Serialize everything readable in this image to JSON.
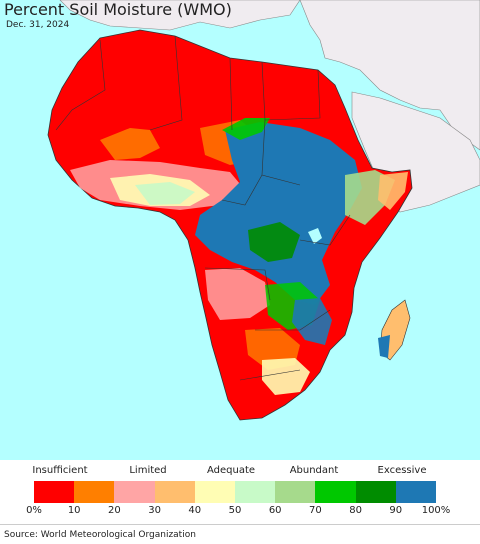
{
  "header": {
    "title": "Percent Soil Moisture (WMO)",
    "date": "Dec. 31, 2024"
  },
  "legend": {
    "categories": [
      {
        "label": "Insufficient"
      },
      {
        "label": "Limited"
      },
      {
        "label": "Adequate"
      },
      {
        "label": "Abundant"
      },
      {
        "label": "Excessive"
      }
    ],
    "colors": [
      "#ff0000",
      "#ff7f00",
      "#ffa5a5",
      "#ffbe6e",
      "#fffdb4",
      "#c8fac8",
      "#a6da8c",
      "#00c800",
      "#008c00",
      "#1e78b4"
    ],
    "ticks": [
      "0%",
      "10",
      "20",
      "30",
      "40",
      "50",
      "60",
      "70",
      "80",
      "90",
      "100%"
    ]
  },
  "map": {
    "ocean_color": "#b4ffff",
    "other_land_color": "#f0ecf0",
    "border_color": "#333333"
  },
  "footer": {
    "source": "Source: World Meteorological Organization"
  }
}
